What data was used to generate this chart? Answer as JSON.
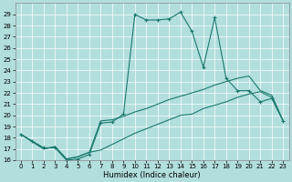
{
  "xlabel": "Humidex (Indice chaleur)",
  "xlim": [
    -0.5,
    23.5
  ],
  "ylim": [
    16,
    30
  ],
  "xticks": [
    0,
    1,
    2,
    3,
    4,
    5,
    6,
    7,
    8,
    9,
    10,
    11,
    12,
    13,
    14,
    15,
    16,
    17,
    18,
    19,
    20,
    21,
    22,
    23
  ],
  "yticks": [
    16,
    17,
    18,
    19,
    20,
    21,
    22,
    23,
    24,
    25,
    26,
    27,
    28,
    29
  ],
  "background_color": "#b2dede",
  "grid_color": "#ffffff",
  "line_color": "#1a7a6e",
  "line1_x": [
    0,
    1,
    2,
    3,
    4,
    5,
    6,
    7,
    8,
    9,
    10,
    11,
    12,
    13,
    14,
    15,
    16,
    17,
    18,
    19,
    20,
    21,
    22,
    23
  ],
  "line1_y": [
    18.3,
    17.7,
    17.1,
    17.1,
    16.0,
    16.1,
    16.5,
    19.3,
    19.4,
    20.1,
    29.0,
    28.5,
    28.5,
    28.6,
    29.2,
    27.5,
    24.3,
    28.7,
    23.3,
    22.2,
    22.2,
    21.2,
    21.5,
    19.5
  ],
  "line2_x": [
    0,
    2,
    3,
    4,
    5,
    6,
    7,
    8,
    9,
    10,
    11,
    12,
    13,
    14,
    15,
    16,
    17,
    18,
    19,
    20,
    21,
    22,
    23
  ],
  "line2_y": [
    18.3,
    17.0,
    17.2,
    16.1,
    16.3,
    16.7,
    19.5,
    19.6,
    19.9,
    20.3,
    20.6,
    21.0,
    21.4,
    21.7,
    22.0,
    22.3,
    22.7,
    23.0,
    23.3,
    23.5,
    22.2,
    21.8,
    19.5
  ],
  "line3_x": [
    0,
    2,
    3,
    4,
    5,
    6,
    7,
    8,
    9,
    10,
    11,
    12,
    13,
    14,
    15,
    16,
    17,
    18,
    19,
    20,
    21,
    22,
    23
  ],
  "line3_y": [
    18.3,
    17.0,
    17.2,
    16.1,
    16.3,
    16.7,
    16.9,
    17.4,
    17.9,
    18.4,
    18.8,
    19.2,
    19.6,
    20.0,
    20.1,
    20.6,
    20.9,
    21.2,
    21.6,
    21.9,
    22.1,
    21.6,
    19.5
  ]
}
